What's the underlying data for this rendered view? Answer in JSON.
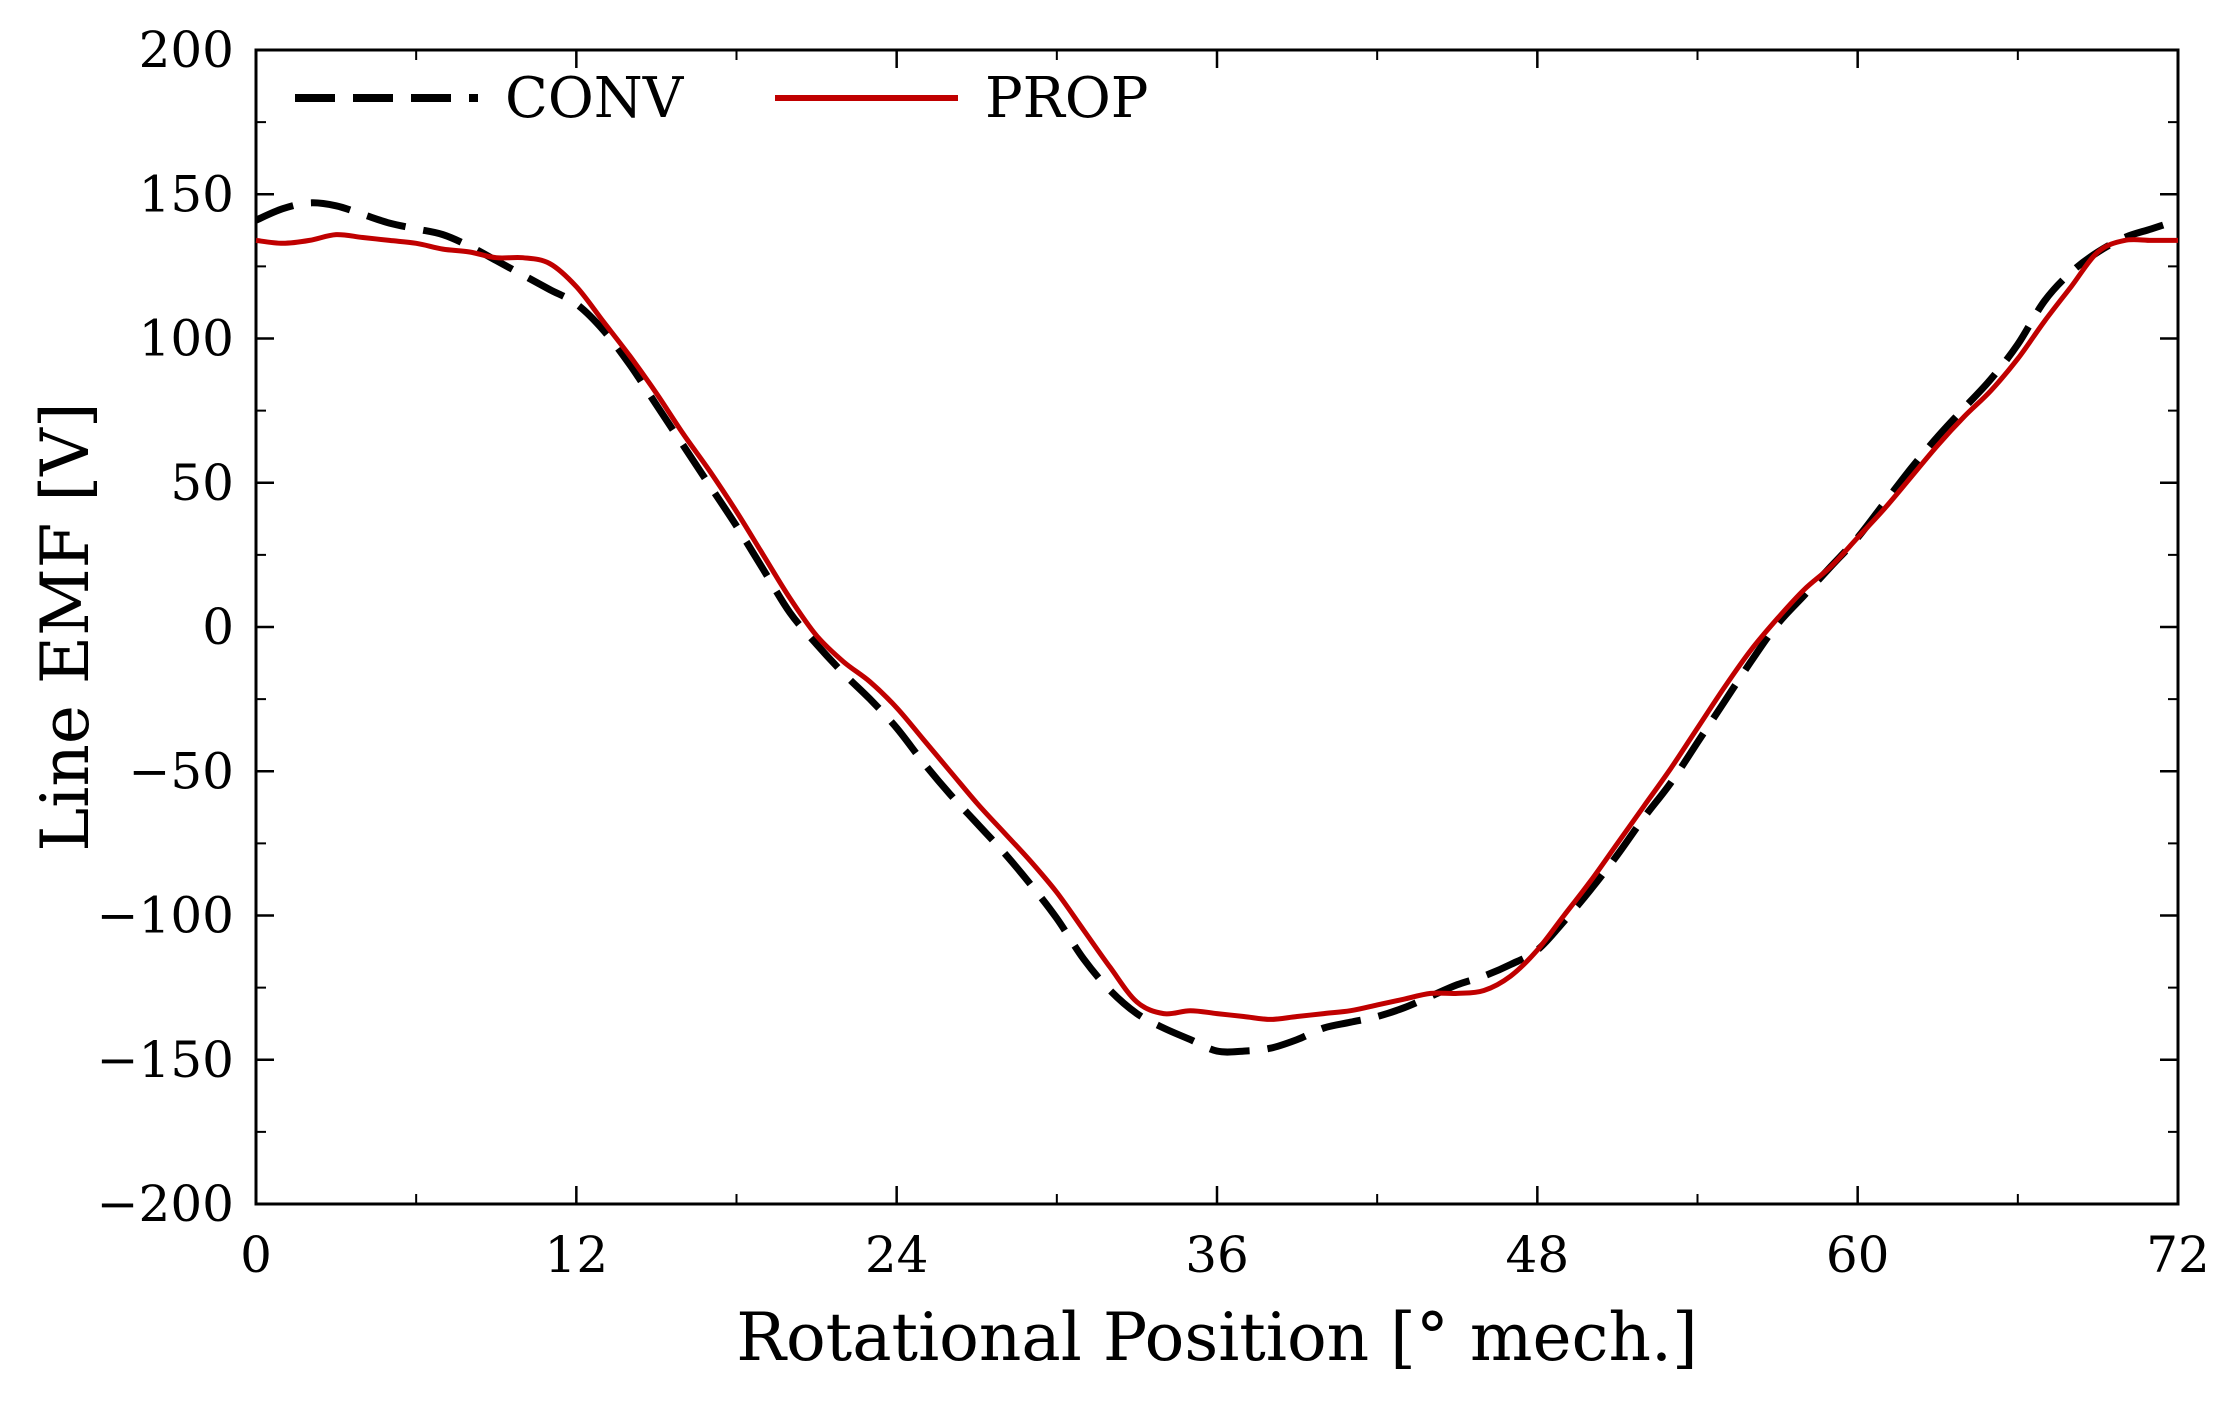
{
  "chart_data": {
    "type": "line",
    "title": "",
    "xlabel": "Rotational Position [° mech.]",
    "ylabel": "Line EMF [V]",
    "xlim": [
      0,
      72
    ],
    "ylim": [
      -200,
      200
    ],
    "xticks": [
      0,
      12,
      24,
      36,
      48,
      60,
      72
    ],
    "yticks": [
      -200,
      -150,
      -100,
      -50,
      0,
      50,
      100,
      150,
      200
    ],
    "xtick_labels": [
      "0",
      "12",
      "24",
      "36",
      "48",
      "60",
      "72"
    ],
    "ytick_labels": [
      "−200",
      "−150",
      "−100",
      "−50",
      "0",
      "50",
      "100",
      "150",
      "200"
    ],
    "grid": false,
    "legend": {
      "placement": "top-left",
      "orientation": "horizontal"
    },
    "series": [
      {
        "name": "CONV",
        "color": "#000000",
        "dash": "dashed",
        "x": [
          0,
          1,
          2,
          3,
          4,
          5,
          6,
          7,
          8,
          9,
          10,
          11,
          12,
          13,
          14,
          15,
          16,
          17,
          18,
          19,
          20,
          21,
          22,
          23,
          24,
          25,
          26,
          27,
          28,
          29,
          30,
          31,
          32,
          33,
          34,
          35,
          36,
          37,
          38,
          39,
          40,
          41,
          42,
          43,
          44,
          45,
          46,
          47,
          48,
          49,
          50,
          51,
          52,
          53,
          54,
          55,
          56,
          57,
          58,
          59,
          60,
          61,
          62,
          63,
          64,
          65,
          66,
          67,
          68,
          69,
          70,
          71,
          72
        ],
        "values": [
          141,
          145,
          147,
          146,
          143,
          140,
          138,
          136,
          132,
          127,
          122,
          117,
          112,
          103,
          91,
          77,
          63,
          49,
          35,
          20,
          5,
          -6,
          -16,
          -25,
          -35,
          -47,
          -58,
          -68,
          -78,
          -89,
          -101,
          -115,
          -126,
          -134,
          -139,
          -143,
          -147,
          -147,
          -146,
          -143,
          -139,
          -137,
          -135,
          -132,
          -128,
          -124,
          -121,
          -117,
          -112,
          -102,
          -91,
          -79,
          -66,
          -54,
          -40,
          -26,
          -12,
          1,
          11,
          21,
          31,
          43,
          55,
          66,
          76,
          86,
          98,
          113,
          123,
          130,
          135,
          138,
          141
        ]
      },
      {
        "name": "PROP",
        "color": "#c00000",
        "dash": "solid",
        "x": [
          0,
          1,
          2,
          3,
          4,
          5,
          6,
          7,
          8,
          9,
          10,
          11,
          12,
          13,
          14,
          15,
          16,
          17,
          18,
          19,
          20,
          21,
          22,
          23,
          24,
          25,
          26,
          27,
          28,
          29,
          30,
          31,
          32,
          33,
          34,
          35,
          36,
          37,
          38,
          39,
          40,
          41,
          42,
          43,
          44,
          45,
          46,
          47,
          48,
          49,
          50,
          51,
          52,
          53,
          54,
          55,
          56,
          57,
          58,
          59,
          60,
          61,
          62,
          63,
          64,
          65,
          66,
          67,
          68,
          69,
          70,
          71,
          72
        ],
        "values": [
          134,
          133,
          134,
          136,
          135,
          134,
          133,
          131,
          130,
          128,
          128,
          126,
          118,
          106,
          94,
          81,
          67,
          54,
          40,
          25,
          10,
          -3,
          -12,
          -19,
          -28,
          -39,
          -50,
          -61,
          -71,
          -81,
          -92,
          -105,
          -118,
          -130,
          -134,
          -133,
          -134,
          -135,
          -136,
          -135,
          -134,
          -133,
          -131,
          -129,
          -127,
          -127,
          -126,
          -121,
          -112,
          -100,
          -88,
          -75,
          -62,
          -49,
          -35,
          -21,
          -8,
          3,
          13,
          21,
          31,
          41,
          52,
          63,
          73,
          82,
          93,
          106,
          118,
          130,
          134,
          134,
          134
        ]
      }
    ]
  }
}
